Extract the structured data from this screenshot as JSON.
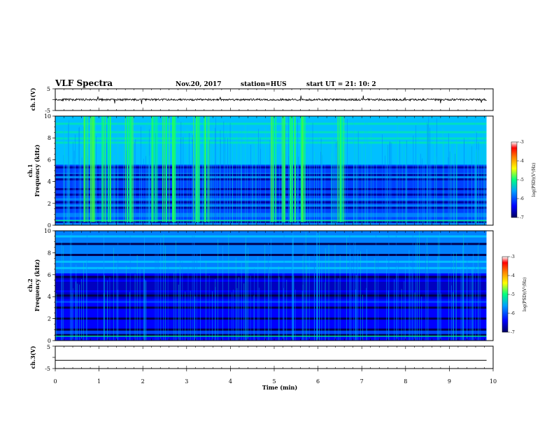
{
  "header": {
    "title": "VLF Spectra",
    "date": "Nov.20, 2017",
    "station": "station=HUS",
    "start_ut": "start  UT =   21: 10: 2"
  },
  "colors": {
    "background": "#ffffff",
    "axis": "#000000",
    "colorscale": [
      "#000060",
      "#0000ff",
      "#00a0ff",
      "#00ff80",
      "#ffff00",
      "#ff8000",
      "#ff0000",
      "#ffffff"
    ]
  },
  "chart_data": [
    {
      "id": "ch1-waveform",
      "type": "line",
      "ylabel": "ch.1(V)",
      "ylim": [
        -5,
        5
      ],
      "yticks": [
        "5",
        "-5"
      ],
      "xlim": [
        0,
        10
      ],
      "description_level": 0,
      "amplitude": 0.9,
      "data_end_min": 9.85
    },
    {
      "id": "ch1-spectrogram",
      "type": "heatmap",
      "ylabel_line1": "ch.1",
      "ylabel_line2": "Frequency  (kHz)",
      "ylim": [
        0,
        10
      ],
      "yticks": [
        "0",
        "2",
        "4",
        "6",
        "8",
        "10"
      ],
      "xlim": [
        0,
        10
      ],
      "data_end_min": 9.85,
      "colorbar": {
        "label": "log(PSD)(V²/Hz)",
        "range": [
          -7,
          -3
        ],
        "ticks": [
          "-3",
          "-4",
          "-5",
          "-6",
          "-7"
        ]
      },
      "bursts_min": [
        [
          0.65,
          0.75
        ],
        [
          0.8,
          0.95
        ],
        [
          1.05,
          1.15
        ],
        [
          1.2,
          1.3
        ],
        [
          1.6,
          1.8
        ],
        [
          2.2,
          2.35
        ],
        [
          2.45,
          2.55
        ],
        [
          2.6,
          2.75
        ],
        [
          3.15,
          3.3
        ],
        [
          3.4,
          3.55
        ],
        [
          4.9,
          5.05
        ],
        [
          5.15,
          5.25
        ],
        [
          5.35,
          5.5
        ],
        [
          5.6,
          5.75
        ],
        [
          6.45,
          6.6
        ]
      ],
      "bands_khz": [
        0.3,
        1.6,
        2.1,
        2.8,
        3.3,
        4.2,
        4.6,
        5.3
      ]
    },
    {
      "id": "ch2-spectrogram",
      "type": "heatmap",
      "ylabel_line1": "ch.2",
      "ylabel_line2": "Frequency  (kHz)",
      "ylim": [
        0,
        10
      ],
      "yticks": [
        "0",
        "2",
        "4",
        "6",
        "8",
        "10"
      ],
      "xlim": [
        0,
        10
      ],
      "data_end_min": 9.85,
      "colorbar": {
        "label": "log(PSD)(V²/Hz)",
        "range": [
          -7,
          -3
        ],
        "ticks": [
          "-3",
          "-4",
          "-5",
          "-6",
          "-7"
        ]
      },
      "bands_khz": [
        0.5,
        1.0,
        2.0,
        3.0,
        4.1,
        5.8,
        7.8,
        8.8
      ]
    },
    {
      "id": "ch3-waveform",
      "type": "line",
      "ylabel": "ch.3(V)",
      "ylim": [
        -5,
        5
      ],
      "yticks": [
        "5",
        "-5"
      ],
      "xlim": [
        0,
        10
      ],
      "description_level": -1.3,
      "amplitude": 0,
      "data_end_min": 9.85
    }
  ],
  "xaxis": {
    "label": "Time  (min)",
    "ticks": [
      "0",
      "1",
      "2",
      "3",
      "4",
      "5",
      "6",
      "7",
      "8",
      "9",
      "10"
    ]
  }
}
